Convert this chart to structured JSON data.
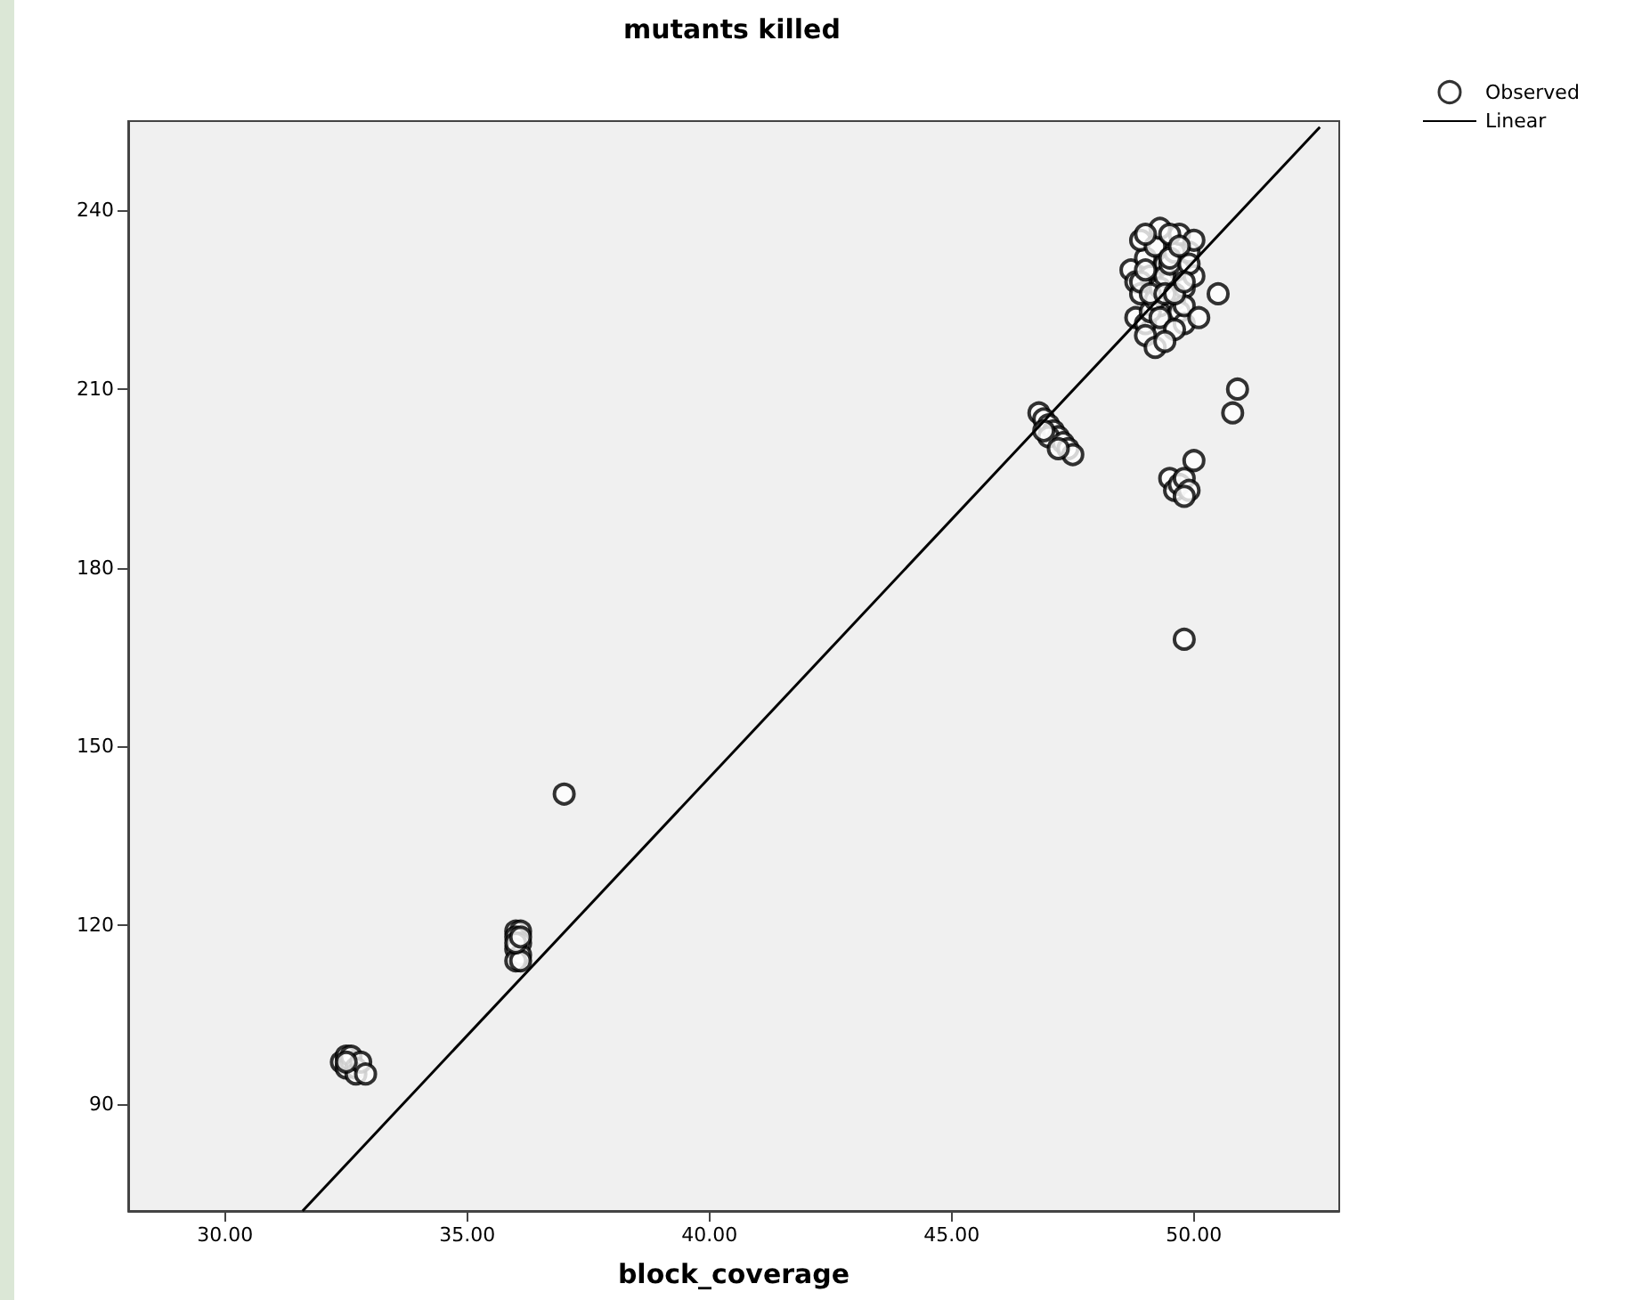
{
  "chart_data": {
    "type": "scatter",
    "title": "mutants killed",
    "xlabel": "block_coverage",
    "xlim": [
      28,
      53
    ],
    "ylim": [
      72,
      255
    ],
    "xticks": [
      {
        "value": 30,
        "label": "30.00"
      },
      {
        "value": 35,
        "label": "35.00"
      },
      {
        "value": 40,
        "label": "40.00"
      },
      {
        "value": 45,
        "label": "45.00"
      },
      {
        "value": 50,
        "label": "50.00"
      }
    ],
    "yticks": [
      90,
      120,
      150,
      180,
      210,
      240
    ],
    "grid": false,
    "legend": "top right",
    "marker": "circle",
    "series": [
      {
        "name": "Observed",
        "color": "#000000",
        "x": [
          32.4,
          32.5,
          32.5,
          32.6,
          32.6,
          32.7,
          32.7,
          32.8,
          32.9,
          32.5,
          36.0,
          36.1,
          36.0,
          36.1,
          36.0,
          36.1,
          36.0,
          36.1,
          36.0,
          36.1,
          37.0,
          46.8,
          46.9,
          47.0,
          47.1,
          47.2,
          47.0,
          47.3,
          47.4,
          47.5,
          46.9,
          47.2,
          48.7,
          48.8,
          48.9,
          49.0,
          49.1,
          49.2,
          49.3,
          49.4,
          49.5,
          49.6,
          49.7,
          49.8,
          49.9,
          50.0,
          48.8,
          48.9,
          49.0,
          49.1,
          49.2,
          49.3,
          49.4,
          49.5,
          49.6,
          49.7,
          49.8,
          49.9,
          48.9,
          49.0,
          49.1,
          49.2,
          49.3,
          49.4,
          49.5,
          49.6,
          49.7,
          49.8,
          49.0,
          49.2,
          49.4,
          49.6,
          49.8,
          50.0,
          49.3,
          49.5,
          49.7,
          49.0,
          50.1,
          50.5,
          50.8,
          50.9,
          49.5,
          49.6,
          49.7,
          49.8,
          49.9,
          50.0,
          49.8,
          49.8
        ],
        "values": [
          97,
          98,
          96,
          97,
          98,
          96,
          95,
          97,
          95,
          97,
          119,
          119,
          118,
          117,
          116,
          115,
          114,
          114,
          117,
          118,
          142,
          206,
          205,
          204,
          203,
          202,
          202,
          201,
          200,
          199,
          203,
          200,
          230,
          228,
          226,
          232,
          229,
          227,
          224,
          231,
          228,
          225,
          230,
          227,
          233,
          229,
          222,
          235,
          221,
          223,
          225,
          227,
          229,
          231,
          233,
          223,
          221,
          231,
          228,
          230,
          226,
          234,
          222,
          226,
          232,
          220,
          236,
          224,
          219,
          217,
          218,
          226,
          228,
          235,
          237,
          236,
          234,
          236,
          222,
          226,
          206,
          210,
          195,
          193,
          194,
          195,
          193,
          198,
          192,
          168
        ]
      },
      {
        "name": "Linear",
        "type": "line",
        "color": "#000000",
        "marker": "none",
        "x": [
          31.6,
          52.6
        ],
        "values": [
          72,
          254
        ]
      }
    ]
  }
}
